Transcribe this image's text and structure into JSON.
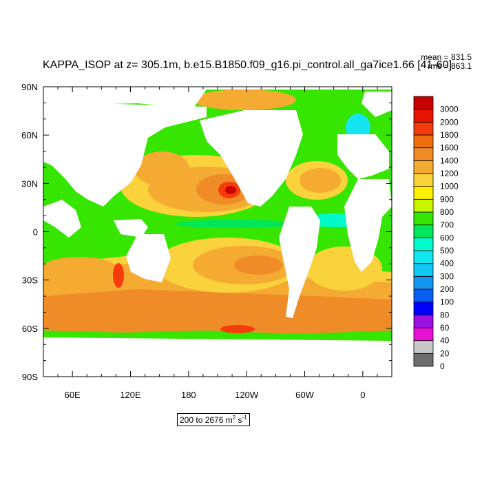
{
  "title": "KAPPA_ISOP at z= 305.1m, b.e15.B1850.f09_g16.pi_control.all_ga7ice1.66 [41-60]",
  "stats": {
    "mean_text": "mean = 831.5",
    "rms_text": "rms = 863.1"
  },
  "range": {
    "text": "200 to 2676 m",
    "unit_exp1": "2",
    "unit_mid": " s",
    "unit_exp2": "-1"
  },
  "chart_data": {
    "type": "heatmap",
    "title": "KAPPA_ISOP at z= 305.1m, b.e15.B1850.f09_g16.pi_control.all_ga7ice1.66 [41-60]",
    "xlabel": "",
    "ylabel": "",
    "x_ticks": [
      "60E",
      "120E",
      "180",
      "120W",
      "60W",
      "0"
    ],
    "y_ticks": [
      "90N",
      "60N",
      "30N",
      "0",
      "30S",
      "60S",
      "90S"
    ],
    "xlim": [
      30,
      390
    ],
    "ylim": [
      -90,
      90
    ],
    "colorbar": {
      "levels": [
        "0",
        "20",
        "40",
        "60",
        "80",
        "100",
        "200",
        "300",
        "400",
        "500",
        "600",
        "700",
        "800",
        "900",
        "1000",
        "1200",
        "1400",
        "1600",
        "1800",
        "2000",
        "3000"
      ],
      "colors": [
        "#6e6e6e",
        "#c8c8c8",
        "#e60fd2",
        "#9b0fe1",
        "#0000ff",
        "#0a5ff0",
        "#1496f0",
        "#0fc8f5",
        "#13e6f0",
        "#00fac8",
        "#00e65a",
        "#37e600",
        "#c8f500",
        "#fff000",
        "#fad23c",
        "#f5aa32",
        "#f08c28",
        "#f06e10",
        "#f53c0a",
        "#e61400",
        "#c80000"
      ]
    },
    "stats": {
      "mean": 831.5,
      "rms": 863.1
    },
    "range": {
      "min": 200,
      "max": 2676,
      "units": "m2 s-1"
    }
  }
}
